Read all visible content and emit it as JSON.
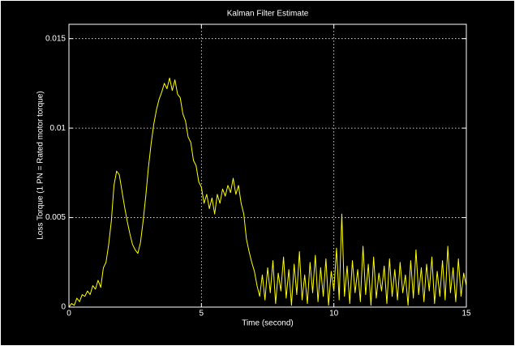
{
  "chart_data": {
    "type": "line",
    "title": "Kalman Filter Estimate",
    "x_label": "Time (second)",
    "y_label": "Loss Torque (1 PN = Rated motor torque)",
    "color": "#ffff00",
    "grid": true,
    "xlim": [
      0,
      15
    ],
    "xticks": [
      0,
      5,
      10,
      15
    ],
    "ylim": [
      0,
      0.0158
    ],
    "yticks": [
      0,
      0.005,
      0.01,
      0.015
    ],
    "x": [
      0,
      0.1,
      0.2,
      0.3,
      0.4,
      0.5,
      0.6,
      0.7,
      0.8,
      0.9,
      1,
      1.1,
      1.2,
      1.3,
      1.4,
      1.5,
      1.6,
      1.7,
      1.8,
      1.9,
      2,
      2.1,
      2.2,
      2.3,
      2.4,
      2.5,
      2.6,
      2.7,
      2.8,
      2.9,
      3,
      3.1,
      3.2,
      3.3,
      3.4,
      3.5,
      3.6,
      3.7,
      3.8,
      3.9,
      4,
      4.1,
      4.2,
      4.3,
      4.4,
      4.5,
      4.6,
      4.7,
      4.8,
      4.9,
      5,
      5.1,
      5.2,
      5.3,
      5.4,
      5.5,
      5.6,
      5.7,
      5.8,
      5.9,
      6,
      6.1,
      6.2,
      6.3,
      6.4,
      6.5,
      6.6,
      6.7,
      6.8,
      6.9,
      7,
      7.1,
      7.2,
      7.3,
      7.4,
      7.5,
      7.6,
      7.7,
      7.8,
      7.9,
      8,
      8.1,
      8.2,
      8.3,
      8.4,
      8.5,
      8.6,
      8.7,
      8.8,
      8.9,
      9,
      9.1,
      9.2,
      9.3,
      9.4,
      9.5,
      9.6,
      9.7,
      9.8,
      9.9,
      10,
      10.1,
      10.2,
      10.3,
      10.4,
      10.5,
      10.6,
      10.7,
      10.8,
      10.9,
      11,
      11.1,
      11.2,
      11.3,
      11.4,
      11.5,
      11.6,
      11.7,
      11.8,
      11.9,
      12,
      12.1,
      12.2,
      12.3,
      12.4,
      12.5,
      12.6,
      12.7,
      12.8,
      12.9,
      13,
      13.1,
      13.2,
      13.3,
      13.4,
      13.5,
      13.6,
      13.7,
      13.8,
      13.9,
      14,
      14.1,
      14.2,
      14.3,
      14.4,
      14.5,
      14.6,
      14.7,
      14.8,
      14.9,
      15
    ],
    "values": [
      0,
      0.0002,
      0.0001,
      0.0005,
      0.0003,
      0.0007,
      0.0006,
      0.0009,
      0.0007,
      0.0012,
      0.001,
      0.0015,
      0.0011,
      0.0022,
      0.0025,
      0.0035,
      0.0048,
      0.0068,
      0.0076,
      0.0074,
      0.0065,
      0.0056,
      0.0048,
      0.0041,
      0.0035,
      0.0032,
      0.003,
      0.0036,
      0.0048,
      0.0062,
      0.0078,
      0.0091,
      0.0102,
      0.011,
      0.0116,
      0.012,
      0.0125,
      0.0122,
      0.0128,
      0.0121,
      0.0127,
      0.0119,
      0.0117,
      0.0108,
      0.0104,
      0.0095,
      0.0092,
      0.0082,
      0.0079,
      0.007,
      0.0067,
      0.0058,
      0.0063,
      0.0055,
      0.0061,
      0.0052,
      0.0063,
      0.0058,
      0.0066,
      0.0062,
      0.0068,
      0.0064,
      0.0072,
      0.0063,
      0.0068,
      0.0058,
      0.0052,
      0.0038,
      0.0031,
      0.0025,
      0.002,
      0.0012,
      0.0006,
      0.0018,
      0.0004,
      0.0022,
      0.0008,
      0.0026,
      0.0002,
      0.0019,
      0.0009,
      0.0028,
      0.0005,
      0.0021,
      0.0001,
      0.0024,
      0.0007,
      0.0031,
      0.0004,
      0.0018,
      0.0002,
      0.0025,
      0.0008,
      0.0029,
      0.0003,
      0.0022,
      0.0006,
      0.0027,
      0.0001,
      0.002,
      0.0009,
      0.0033,
      0.0004,
      0.0052,
      0.0006,
      0.0023,
      0.0002,
      0.0026,
      0.0008,
      0.0021,
      0.0003,
      0.0034,
      0.0007,
      0.0024,
      0.0001,
      0.0028,
      0.0005,
      0.0019,
      0.0009,
      0.0023,
      0.0002,
      0.0027,
      0.0006,
      0.0021,
      0.0004,
      0.0025,
      0.0008,
      0.0018,
      0.0001,
      0.0026,
      0.0005,
      0.0032,
      0.0007,
      0.0022,
      0.0003,
      0.0024,
      0.0009,
      0.0028,
      0.0002,
      0.002,
      0.0006,
      0.0026,
      0.0004,
      0.0034,
      0.0008,
      0.0022,
      0.0003,
      0.0027,
      0.0006,
      0.0019,
      0.0012
    ]
  }
}
